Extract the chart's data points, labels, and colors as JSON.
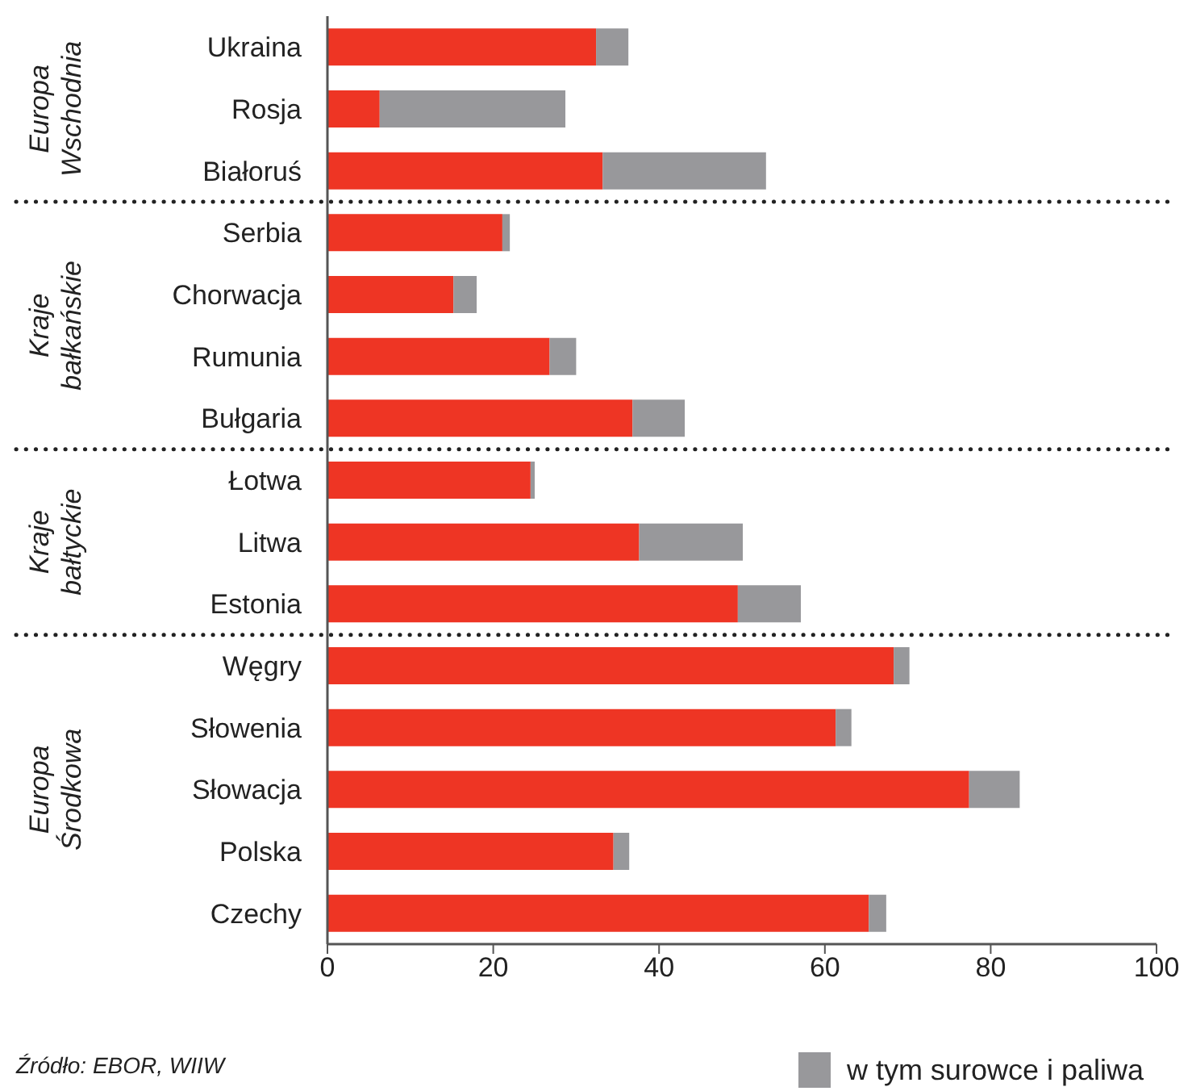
{
  "chart_data": {
    "type": "bar",
    "orientation": "horizontal",
    "stacked": true,
    "categories": [
      "Ukraina",
      "Rosja",
      "Białoruś",
      "Serbia",
      "Chorwacja",
      "Rumunia",
      "Bułgaria",
      "Łotwa",
      "Litwa",
      "Estonia",
      "Węgry",
      "Słowenia",
      "Słowacja",
      "Polska",
      "Czechy"
    ],
    "series": [
      {
        "color": "#ee3524",
        "values": [
          32.4,
          6.3,
          33.2,
          21.1,
          15.2,
          26.8,
          36.8,
          24.5,
          37.6,
          49.5,
          68.3,
          61.3,
          77.4,
          34.5,
          65.3
        ]
      },
      {
        "name": "w tym surowce i paliwa",
        "color": "#98989b",
        "values": [
          3.9,
          22.4,
          19.7,
          0.9,
          2.8,
          3.2,
          6.3,
          0.5,
          12.5,
          7.6,
          1.9,
          1.9,
          6.1,
          1.9,
          2.1
        ]
      }
    ],
    "xlim": [
      0,
      100
    ],
    "xticks": [
      0,
      20,
      40,
      60,
      80,
      100
    ],
    "grid": false,
    "legend": "bottom right",
    "annotations": [
      "Europa Wschodnia",
      "Kraje bałkańskie",
      "Kraje bałtyckie",
      "Europa Środkowa",
      "Źródło: EBOR, WIIW"
    ]
  }
}
